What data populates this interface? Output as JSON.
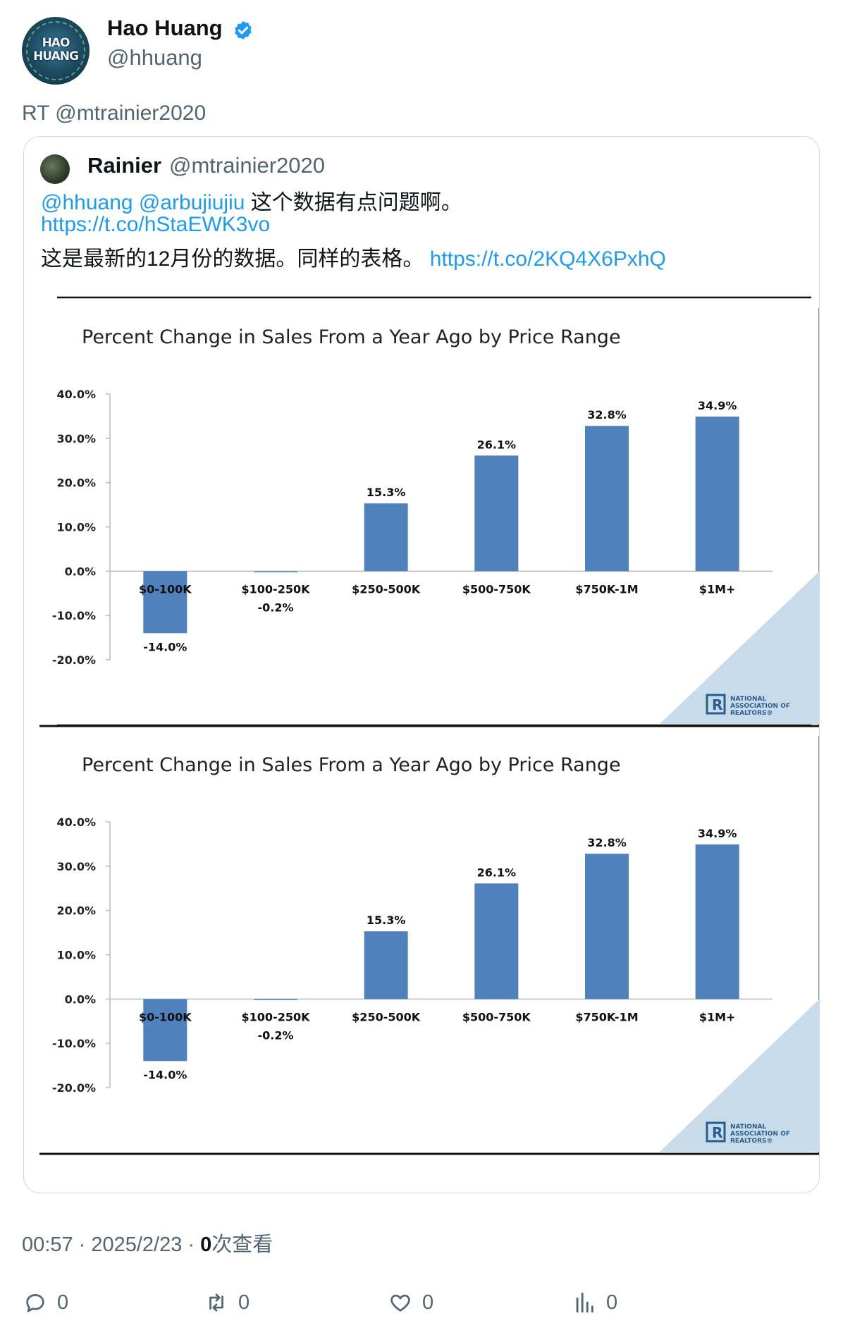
{
  "author": {
    "name": "Hao Huang",
    "handle": "@hhuang",
    "avatar_text": "HAO HUANG",
    "verified": true
  },
  "retweet_label": "RT @mtrainier2020",
  "quoted": {
    "name": "Rainier",
    "handle": "@mtrainier2020",
    "line1": {
      "mention1": "@hhuang",
      "mention2": "@arbujiujiu",
      "text": " 这个数据有点问题啊。"
    },
    "line2_link": "https://t.co/hStaEWK3vo",
    "line3": {
      "text": "这是最新的12月份的数据。同样的表格。 ",
      "link": "https://t.co/2KQ4X6PxhQ"
    }
  },
  "meta": {
    "time": "00:57",
    "sep": " · ",
    "date": "2025/2/23",
    "views_count": "0",
    "views_label": "次查看"
  },
  "actions": {
    "reply": "0",
    "retweet": "0",
    "like": "0",
    "views": "0"
  },
  "chart_data": [
    {
      "type": "bar",
      "title": "Percent Change in Sales From a Year Ago by Price Range",
      "categories": [
        "$0-100K",
        "$100-250K",
        "$250-500K",
        "$500-750K",
        "$750K-1M",
        "$1M+"
      ],
      "values": [
        -14.0,
        -0.2,
        15.3,
        26.1,
        32.8,
        34.9
      ],
      "data_labels": [
        "-14.0%",
        "-0.2%",
        "15.3%",
        "26.1%",
        "32.8%",
        "34.9%"
      ],
      "yticks": [
        "40.0%",
        "30.0%",
        "20.0%",
        "10.0%",
        "0.0%",
        "-10.0%",
        "-20.0%"
      ],
      "ylim": [
        -20,
        40
      ],
      "grid": false,
      "bar_color": "#4f81bd",
      "logo_text": [
        "NATIONAL",
        "ASSOCIATION OF",
        "REALTORS®"
      ]
    },
    {
      "type": "bar",
      "title": "Percent Change in Sales From a Year Ago by Price Range",
      "categories": [
        "$0-100K",
        "$100-250K",
        "$250-500K",
        "$500-750K",
        "$750K-1M",
        "$1M+"
      ],
      "values": [
        -14.0,
        -0.2,
        15.3,
        26.1,
        32.8,
        34.9
      ],
      "data_labels": [
        "-14.0%",
        "-0.2%",
        "15.3%",
        "26.1%",
        "32.8%",
        "34.9%"
      ],
      "yticks": [
        "40.0%",
        "30.0%",
        "20.0%",
        "10.0%",
        "0.0%",
        "-10.0%",
        "-20.0%"
      ],
      "ylim": [
        -20,
        40
      ],
      "grid": false,
      "bar_color": "#4f81bd",
      "logo_text": [
        "NATIONAL",
        "ASSOCIATION OF",
        "REALTORS®"
      ]
    }
  ]
}
